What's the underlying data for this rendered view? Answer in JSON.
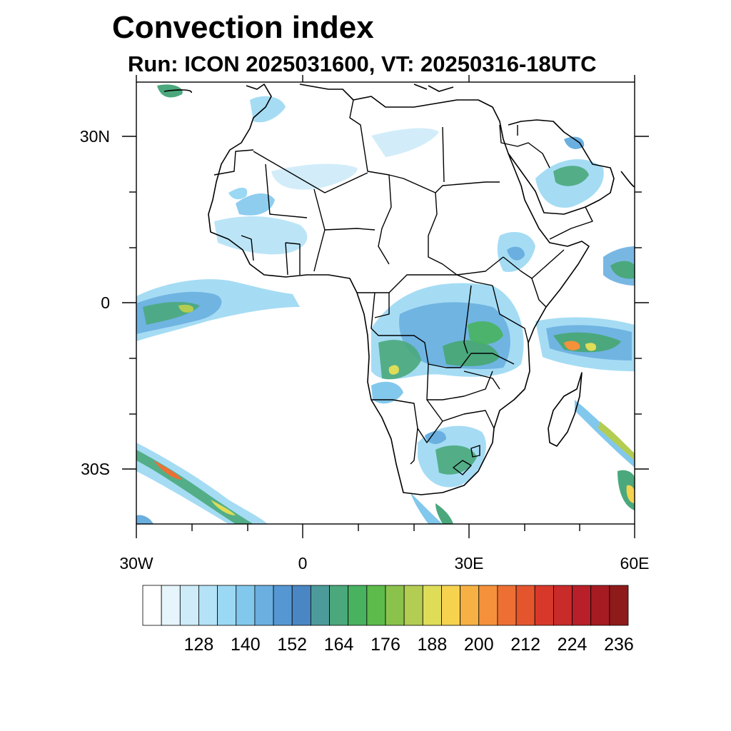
{
  "title": "Convection index",
  "subtitle": "Run: ICON 2025031600,  VT: 20250316-18UTC",
  "map": {
    "region": "Africa",
    "lon_range": [
      -30,
      60
    ],
    "lat_range": [
      -40,
      40
    ],
    "lat_ticks": [
      {
        "value": 30,
        "label": "30N"
      },
      {
        "value": 0,
        "label": "0"
      },
      {
        "value": -30,
        "label": "30S"
      }
    ],
    "lon_ticks": [
      {
        "value": -30,
        "label": "30W"
      },
      {
        "value": 0,
        "label": "0"
      },
      {
        "value": 30,
        "label": "30E"
      },
      {
        "value": 60,
        "label": "60E"
      }
    ]
  },
  "colorbar": {
    "colors": [
      "#ffffff",
      "#e6f5fb",
      "#cdebf8",
      "#b4e2f6",
      "#9bd8f3",
      "#82c8ec",
      "#6aafe0",
      "#5597d3",
      "#4a86c4",
      "#4c9b9a",
      "#4aa87c",
      "#48b25f",
      "#5cbb4a",
      "#8ac24c",
      "#b3cc52",
      "#dfdc58",
      "#f6d24f",
      "#f7b043",
      "#f5913b",
      "#ee6f34",
      "#e4552e",
      "#d8382a",
      "#c92a2a",
      "#b81f29",
      "#a61b22",
      "#8e1a1a"
    ],
    "labels": [
      "128",
      "140",
      "152",
      "164",
      "176",
      "188",
      "200",
      "212",
      "224",
      "236"
    ]
  }
}
